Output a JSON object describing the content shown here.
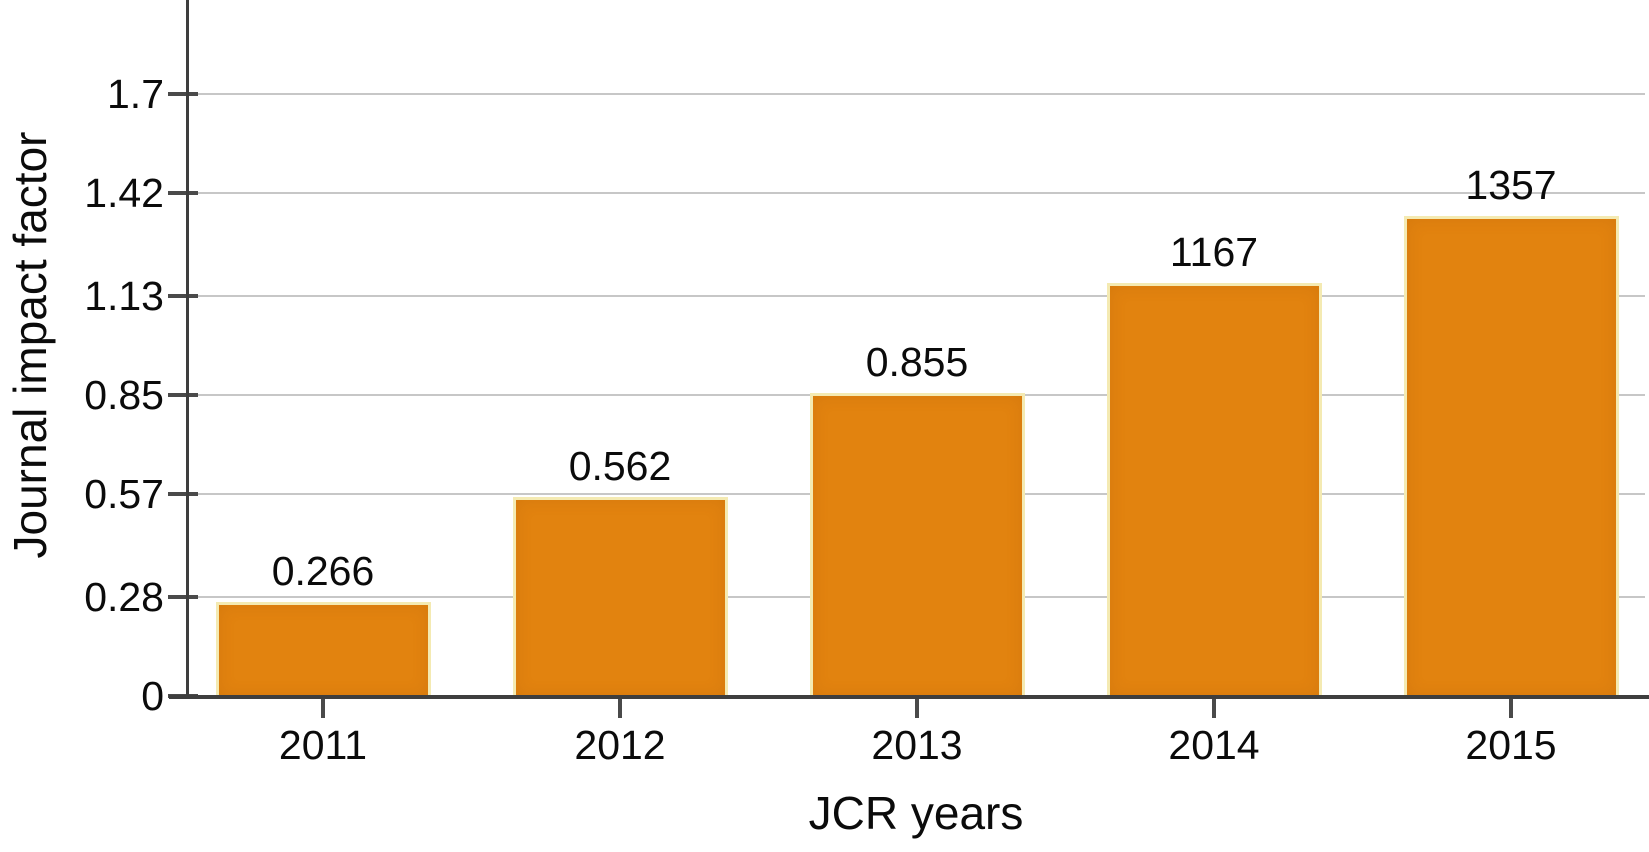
{
  "chart_data": {
    "type": "bar",
    "title": "",
    "xlabel": "JCR years",
    "ylabel": "Journal impact factor",
    "categories": [
      "2011",
      "2012",
      "2013",
      "2014",
      "2015"
    ],
    "values": [
      0.266,
      0.562,
      0.855,
      1.167,
      1.357
    ],
    "bar_value_labels": [
      "0.266",
      "0.562",
      "0.855",
      "1167",
      "1357"
    ],
    "y_ticks": [
      {
        "value": 0,
        "label": "0"
      },
      {
        "value": 0.28,
        "label": "0.28"
      },
      {
        "value": 0.57,
        "label": "0.57"
      },
      {
        "value": 0.85,
        "label": "0.85"
      },
      {
        "value": 1.13,
        "label": "1.13"
      },
      {
        "value": 1.42,
        "label": "1.42"
      },
      {
        "value": 1.7,
        "label": "1.7"
      }
    ],
    "ylim": [
      0,
      1.96
    ],
    "grid": "horizontal",
    "legend": "none",
    "colors": {
      "bar_fill": "#E2830F",
      "bar_edge": "#F4EAB2",
      "gridline": "#C7C7C7",
      "axis": "#3E3E3E",
      "tick": "#4A4A4A",
      "text": "#0B0B0B",
      "background": "#FFFFFF"
    }
  }
}
